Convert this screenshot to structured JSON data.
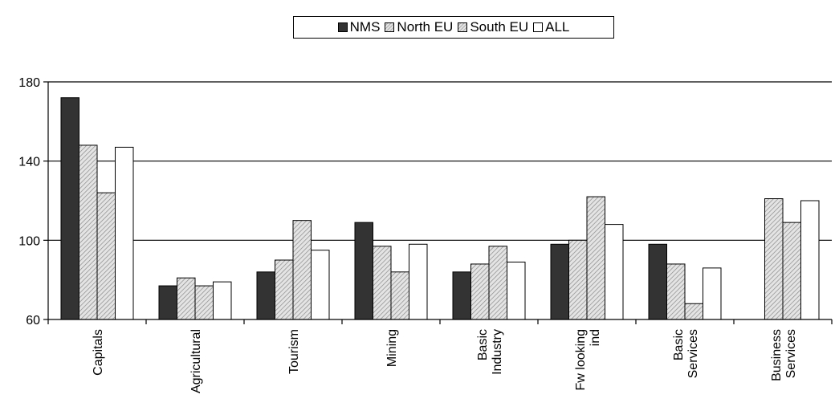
{
  "chart_data": {
    "type": "bar",
    "categories": [
      [
        "Capitals"
      ],
      [
        "Agricultural"
      ],
      [
        "Tourism"
      ],
      [
        "Mining"
      ],
      [
        "Basic",
        "Industry"
      ],
      [
        "Fw looking",
        "ind"
      ],
      [
        "Basic",
        "Services"
      ],
      [
        "Business",
        "Services"
      ]
    ],
    "series": [
      {
        "name": "NMS",
        "values": [
          172,
          77,
          84,
          109,
          84,
          98,
          98,
          null
        ],
        "color": "#333333",
        "pattern": "solid"
      },
      {
        "name": "North EU",
        "values": [
          148,
          81,
          90,
          97,
          88,
          100,
          88,
          121
        ],
        "color": "#c8c8c8",
        "pattern": "hatch"
      },
      {
        "name": "South EU",
        "values": [
          124,
          77,
          110,
          84,
          97,
          122,
          68,
          109
        ],
        "color": "#c8c8c8",
        "pattern": "hatch"
      },
      {
        "name": "ALL",
        "values": [
          147,
          79,
          95,
          98,
          89,
          108,
          86,
          120
        ],
        "color": "#ffffff",
        "pattern": "solid"
      }
    ],
    "ylim": [
      60,
      180
    ],
    "yticks": [
      60,
      100,
      140,
      180
    ],
    "gridlines": [
      100,
      140,
      180
    ],
    "legend_position": "top-center"
  }
}
